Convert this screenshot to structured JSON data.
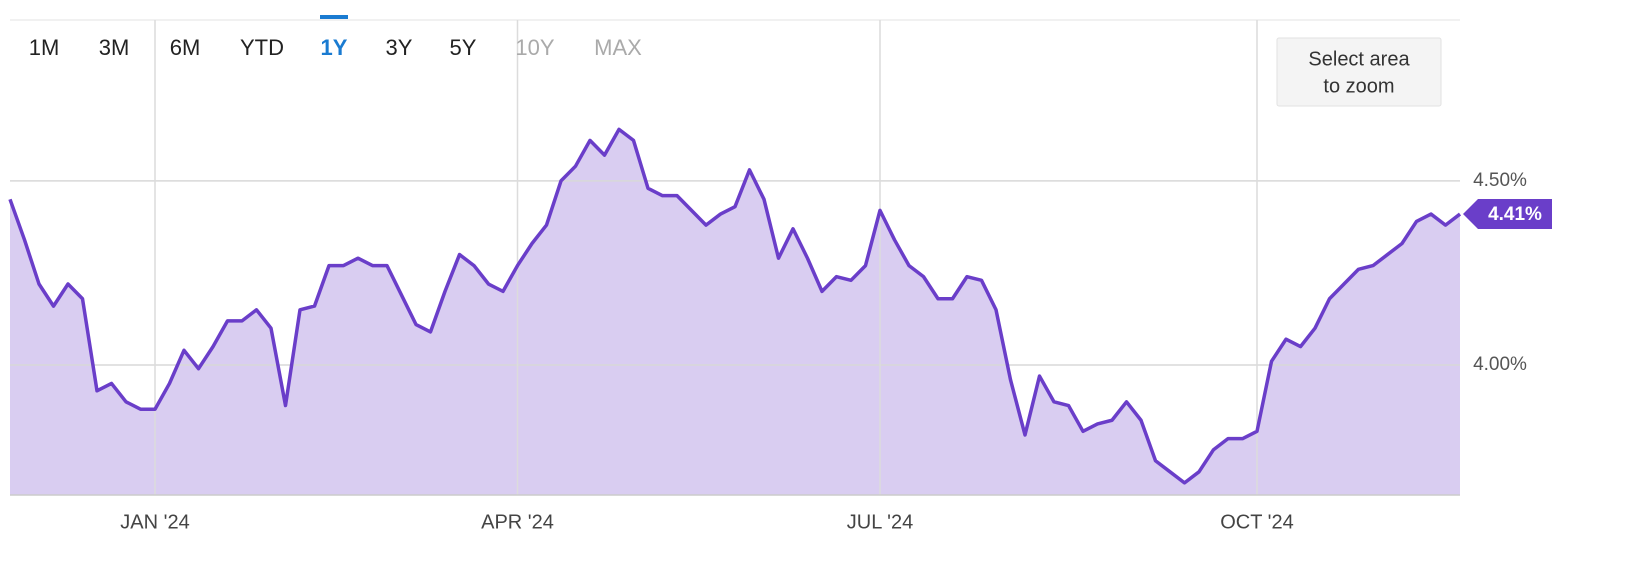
{
  "range_buttons": [
    "1M",
    "3M",
    "6M",
    "YTD",
    "1Y",
    "3Y",
    "5Y",
    "10Y",
    "MAX"
  ],
  "selected_range_index": 4,
  "disabled_range_indices": [
    7,
    8
  ],
  "zoom_button": [
    "Select area",
    "to zoom"
  ],
  "chart_data": {
    "type": "area",
    "color": "#6a3ec9",
    "fill_color": "#d9cdf1",
    "grid": true,
    "categories": [
      null,
      null,
      null,
      null,
      null,
      null,
      null,
      null,
      null,
      null,
      "JAN '24",
      null,
      null,
      null,
      null,
      null,
      null,
      null,
      null,
      null,
      null,
      null,
      null,
      null,
      null,
      null,
      null,
      null,
      null,
      null,
      null,
      null,
      null,
      null,
      null,
      "APR '24",
      null,
      null,
      null,
      null,
      null,
      null,
      null,
      null,
      null,
      null,
      null,
      null,
      null,
      null,
      null,
      null,
      null,
      null,
      null,
      null,
      null,
      null,
      null,
      null,
      "JUL '24",
      null,
      null,
      null,
      null,
      null,
      null,
      null,
      null,
      null,
      null,
      null,
      null,
      null,
      null,
      null,
      null,
      null,
      null,
      null,
      null,
      null,
      null,
      null,
      null,
      null,
      "OCT '24",
      null,
      null,
      null,
      null,
      null,
      null,
      null,
      null,
      null,
      null,
      null,
      null,
      null,
      null
    ],
    "values": [
      4.45,
      4.34,
      4.22,
      4.16,
      4.22,
      4.18,
      3.93,
      3.95,
      3.9,
      3.88,
      3.88,
      3.95,
      4.04,
      3.99,
      4.05,
      4.12,
      4.12,
      4.15,
      4.1,
      3.89,
      4.15,
      4.16,
      4.27,
      4.27,
      4.29,
      4.27,
      4.27,
      4.19,
      4.11,
      4.09,
      4.2,
      4.3,
      4.27,
      4.22,
      4.2,
      4.27,
      4.33,
      4.38,
      4.5,
      4.54,
      4.61,
      4.57,
      4.64,
      4.61,
      4.48,
      4.46,
      4.46,
      4.42,
      4.38,
      4.41,
      4.43,
      4.53,
      4.45,
      4.29,
      4.37,
      4.29,
      4.2,
      4.24,
      4.23,
      4.27,
      4.42,
      4.34,
      4.27,
      4.24,
      4.18,
      4.18,
      4.24,
      4.23,
      4.15,
      3.96,
      3.81,
      3.97,
      3.9,
      3.89,
      3.82,
      3.84,
      3.85,
      3.9,
      3.85,
      3.74,
      3.71,
      3.68,
      3.71,
      3.77,
      3.8,
      3.8,
      3.82,
      4.01,
      4.07,
      4.05,
      4.1,
      4.18,
      4.22,
      4.26,
      4.27,
      4.3,
      4.33,
      4.39,
      4.41,
      4.38,
      4.41
    ],
    "value_labels": [
      null,
      null,
      null,
      null,
      null,
      null,
      null,
      null,
      null,
      null,
      null,
      null,
      null,
      null,
      null,
      null,
      null,
      null,
      null,
      null,
      null,
      null,
      null,
      null,
      null,
      null,
      null,
      null,
      null,
      null,
      null,
      null,
      null,
      null,
      null,
      null,
      null,
      null,
      null,
      null,
      null,
      null,
      null,
      null,
      null,
      null,
      null,
      null,
      null,
      null,
      null,
      null,
      null,
      null,
      null,
      null,
      null,
      null,
      null,
      null,
      null,
      null,
      null,
      null,
      null,
      null,
      null,
      null,
      null,
      null,
      null,
      null,
      null,
      null,
      null,
      null,
      null,
      null,
      null,
      null,
      null,
      null,
      null,
      null,
      null,
      null,
      null,
      null,
      null,
      null,
      null,
      null,
      null,
      null,
      null,
      null,
      null,
      null,
      null,
      null,
      "4.41%"
    ],
    "ylim": [
      3.647,
      4.937
    ],
    "yticks": [
      {
        "value": 4.0,
        "label": "4.00%"
      },
      {
        "value": 4.5,
        "label": "4.50%"
      }
    ]
  }
}
